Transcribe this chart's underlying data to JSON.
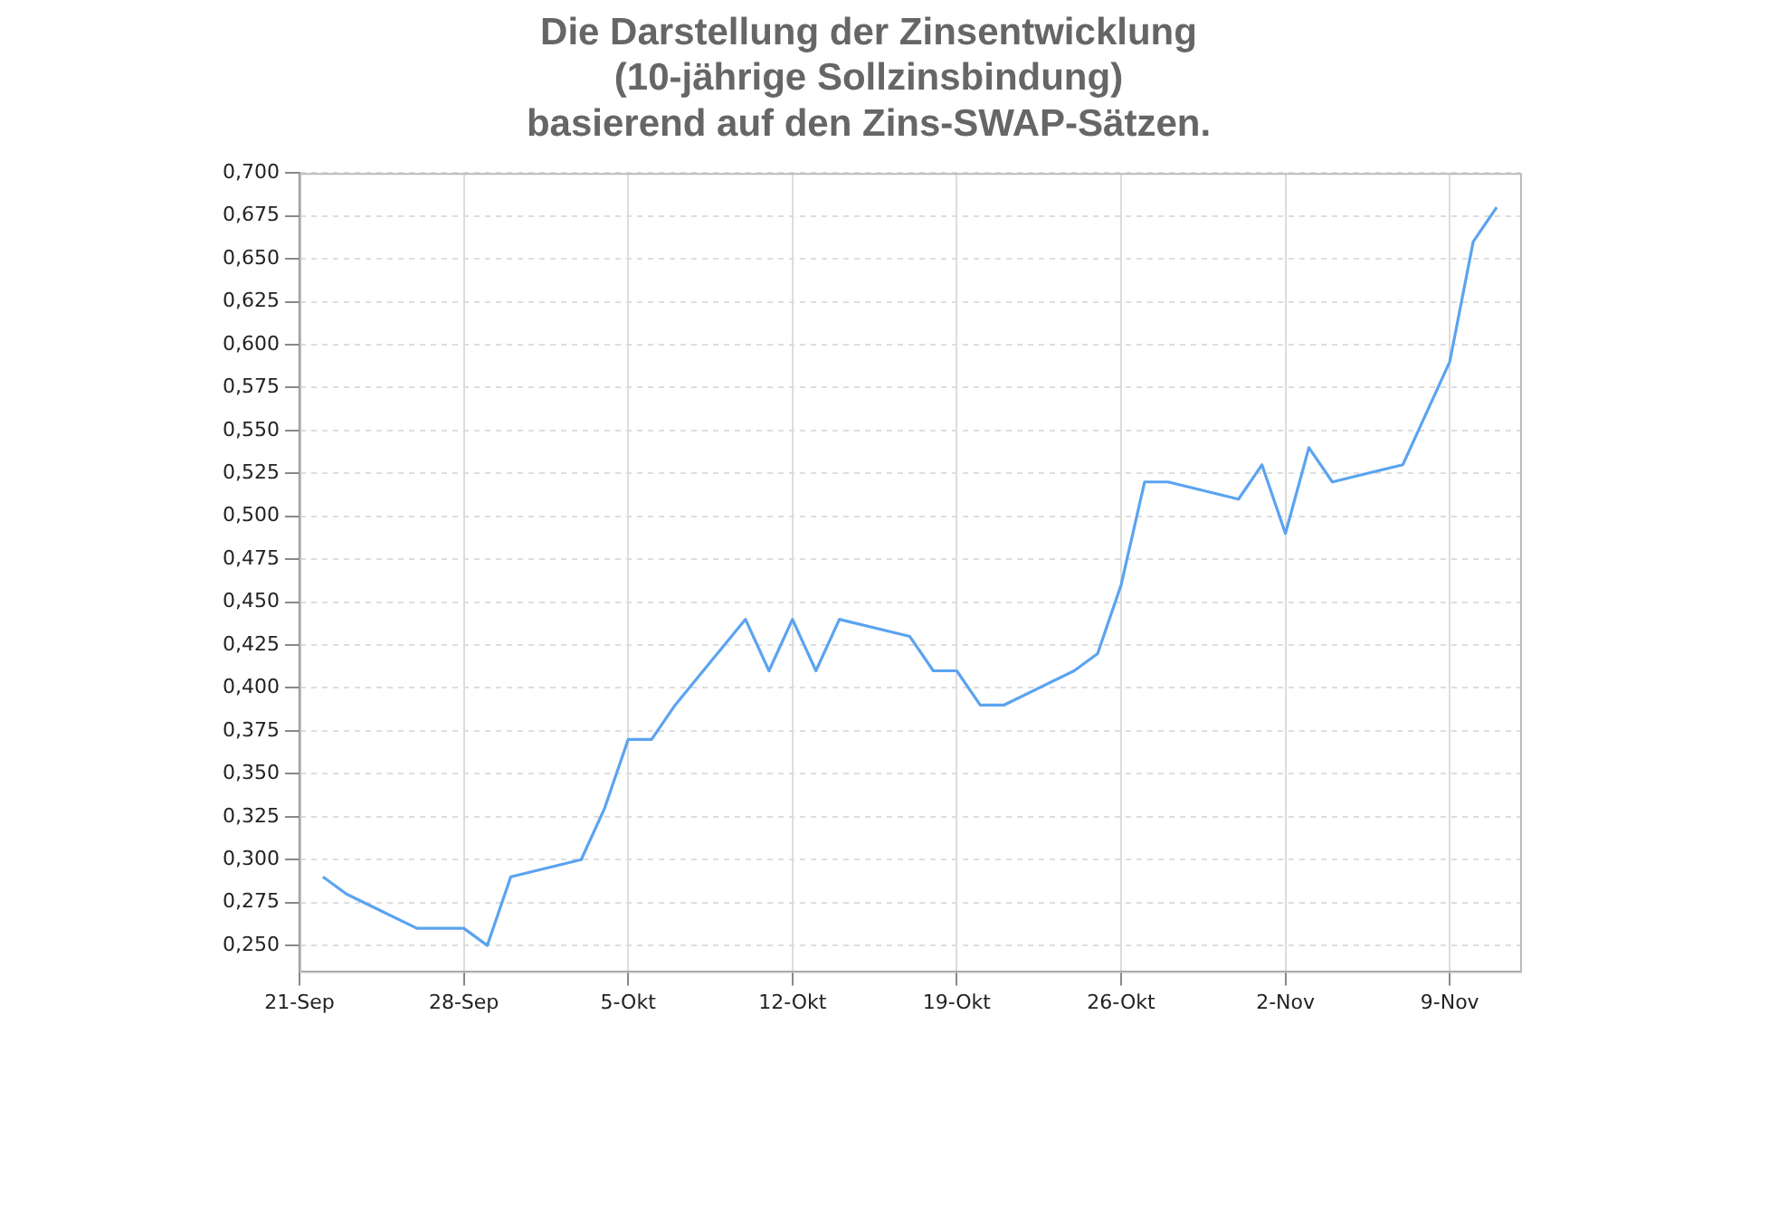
{
  "chart_data": {
    "type": "line",
    "title": "Die Darstellung der Zinsentwicklung\n(10-jährige Sollzinsbindung)\nbasierend auf den Zins-SWAP-Sätzen.",
    "x": [
      "--09-22",
      "--09-23",
      "--09-26",
      "--09-28",
      "--09-29",
      "--09-30",
      "--10-03",
      "--10-04",
      "--10-05",
      "--10-06",
      "--10-07",
      "--10-10",
      "--10-11",
      "--10-12",
      "--10-13",
      "--10-14",
      "--10-17",
      "--10-18",
      "--10-19",
      "--10-20",
      "--10-21",
      "--10-24",
      "--10-25",
      "--10-26",
      "--10-27",
      "--10-28",
      "--10-31",
      "--11-01",
      "--11-02",
      "--11-03",
      "--11-04",
      "--11-07",
      "--11-09",
      "--11-10",
      "--11-11"
    ],
    "series": [
      {
        "color": "#5ba3f0",
        "values": [
          0.29,
          0.28,
          0.26,
          0.26,
          0.25,
          0.29,
          0.3,
          0.33,
          0.37,
          0.37,
          0.39,
          0.44,
          0.41,
          0.44,
          0.41,
          0.44,
          0.43,
          0.41,
          0.41,
          0.39,
          0.39,
          0.41,
          0.42,
          0.46,
          0.52,
          0.52,
          0.51,
          0.53,
          0.49,
          0.54,
          0.52,
          0.53,
          0.59,
          0.66,
          0.68
        ]
      }
    ],
    "xlim": [
      "--09-21",
      "--11-12"
    ],
    "xticks": [
      {
        "value": "--09-21",
        "label": "21-Sep"
      },
      {
        "value": "--09-28",
        "label": "28-Sep"
      },
      {
        "value": "--10-05",
        "label": "5-Okt"
      },
      {
        "value": "--10-12",
        "label": "12-Okt"
      },
      {
        "value": "--10-19",
        "label": "19-Okt"
      },
      {
        "value": "--10-26",
        "label": "26-Okt"
      },
      {
        "value": "--11-02",
        "label": "2-Nov"
      },
      {
        "value": "--11-09",
        "label": "9-Nov"
      }
    ],
    "ylim": [
      0.235,
      0.7
    ],
    "yticks": [
      {
        "value": 0.25,
        "label": "0,250"
      },
      {
        "value": 0.275,
        "label": "0,275"
      },
      {
        "value": 0.3,
        "label": "0,300"
      },
      {
        "value": 0.325,
        "label": "0,325"
      },
      {
        "value": 0.35,
        "label": "0,350"
      },
      {
        "value": 0.375,
        "label": "0,375"
      },
      {
        "value": 0.4,
        "label": "0,400"
      },
      {
        "value": 0.425,
        "label": "0,425"
      },
      {
        "value": 0.45,
        "label": "0,450"
      },
      {
        "value": 0.475,
        "label": "0,475"
      },
      {
        "value": 0.5,
        "label": "0,500"
      },
      {
        "value": 0.525,
        "label": "0,525"
      },
      {
        "value": 0.55,
        "label": "0,550"
      },
      {
        "value": 0.575,
        "label": "0,575"
      },
      {
        "value": 0.6,
        "label": "0,600"
      },
      {
        "value": 0.625,
        "label": "0,625"
      },
      {
        "value": 0.65,
        "label": "0,650"
      },
      {
        "value": 0.675,
        "label": "0,675"
      },
      {
        "value": 0.7,
        "label": "0,700"
      }
    ],
    "grid": true,
    "legend": false,
    "marker": "none",
    "line_style": "solid"
  }
}
